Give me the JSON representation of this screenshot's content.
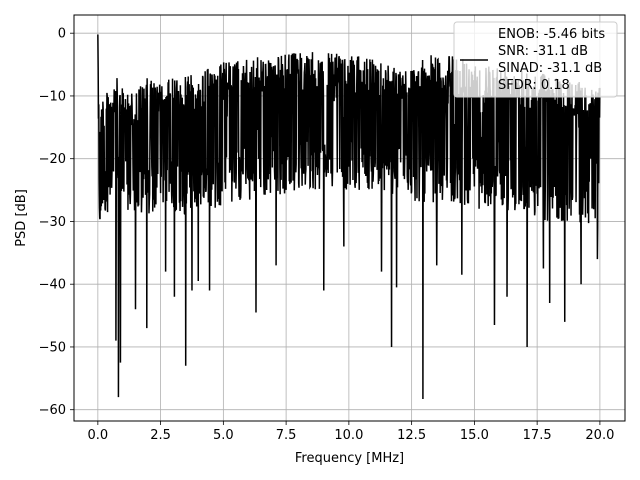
{
  "chart_data": {
    "type": "line",
    "title": "",
    "xlabel": "Frequency [MHz]",
    "ylabel": "PSD [dB]",
    "xlim": [
      -0.95,
      21.0
    ],
    "ylim": [
      -61.8,
      2.9
    ],
    "xticks": [
      0.0,
      2.5,
      5.0,
      7.5,
      10.0,
      12.5,
      15.0,
      17.5,
      20.0
    ],
    "xtick_labels": [
      "0.0",
      "2.5",
      "5.0",
      "7.5",
      "10.0",
      "12.5",
      "15.0",
      "17.5",
      "20.0"
    ],
    "yticks": [
      0,
      -10,
      -20,
      -30,
      -40,
      -50,
      -60
    ],
    "ytick_labels": [
      "0",
      "−10",
      "−20",
      "−30",
      "−40",
      "−50",
      "−60"
    ],
    "grid": true,
    "line_color": "#000000",
    "series": [
      {
        "x": [
          0.0,
          0.05,
          0.1,
          0.2,
          0.3,
          0.5,
          0.8,
          1.0,
          1.5,
          2.0,
          2.5,
          3.0,
          3.5,
          4.0,
          4.5,
          5.0,
          6.0,
          7.0,
          8.0,
          9.0,
          10.0,
          11.0,
          12.0,
          12.5,
          13.0,
          14.0,
          15.0,
          16.0,
          17.0,
          18.0,
          19.0,
          20.0
        ],
        "y_top": [
          -0.2,
          -8.0,
          -11.0,
          -9.0,
          -10.0,
          -8.0,
          -7.0,
          -9.0,
          -9.0,
          -7.0,
          -8.0,
          -7.0,
          -6.0,
          -7.0,
          -5.0,
          -4.5,
          -4.0,
          -3.5,
          -3.0,
          -3.0,
          -3.5,
          -4.0,
          -5.0,
          -5.5,
          -3.5,
          -3.5,
          -4.5,
          -5.0,
          -6.0,
          -6.5,
          -7.5,
          -8.5
        ],
        "y_body_low": [
          -8,
          -30,
          -32,
          -28,
          -29,
          -28,
          -27,
          -28,
          -29,
          -30,
          -27,
          -28,
          -29,
          -28,
          -29,
          -27,
          -27,
          -26,
          -25,
          -25,
          -25,
          -25,
          -26,
          -27,
          -27,
          -27,
          -28,
          -28,
          -29,
          -30,
          -30,
          -31
        ]
      }
    ],
    "dips": [
      {
        "x": 0.72,
        "y": -49.0
      },
      {
        "x": 0.82,
        "y": -58.0
      },
      {
        "x": 0.9,
        "y": -52.5
      },
      {
        "x": 1.5,
        "y": -44.0
      },
      {
        "x": 1.95,
        "y": -47.0
      },
      {
        "x": 2.7,
        "y": -38.0
      },
      {
        "x": 3.05,
        "y": -42.0
      },
      {
        "x": 3.5,
        "y": -53.0
      },
      {
        "x": 3.75,
        "y": -41.0
      },
      {
        "x": 4.0,
        "y": -39.5
      },
      {
        "x": 4.45,
        "y": -41.0
      },
      {
        "x": 6.3,
        "y": -44.5
      },
      {
        "x": 7.1,
        "y": -37.0
      },
      {
        "x": 9.0,
        "y": -41.0
      },
      {
        "x": 9.8,
        "y": -34.0
      },
      {
        "x": 11.3,
        "y": -38.0
      },
      {
        "x": 11.7,
        "y": -50.0
      },
      {
        "x": 11.9,
        "y": -40.5
      },
      {
        "x": 12.95,
        "y": -58.3
      },
      {
        "x": 13.5,
        "y": -37.0
      },
      {
        "x": 14.5,
        "y": -38.5
      },
      {
        "x": 15.8,
        "y": -46.5
      },
      {
        "x": 16.3,
        "y": -42.0
      },
      {
        "x": 17.1,
        "y": -50.0
      },
      {
        "x": 17.75,
        "y": -37.5
      },
      {
        "x": 18.0,
        "y": -43.0
      },
      {
        "x": 18.6,
        "y": -46.0
      },
      {
        "x": 19.25,
        "y": -40.0
      },
      {
        "x": 19.9,
        "y": -36.0
      }
    ]
  },
  "legend": {
    "placement": "top-right",
    "lines": [
      "ENOB: -5.46 bits",
      "SNR: -31.1 dB",
      "SINAD: -31.1 dB",
      "SFDR: 0.18"
    ]
  }
}
